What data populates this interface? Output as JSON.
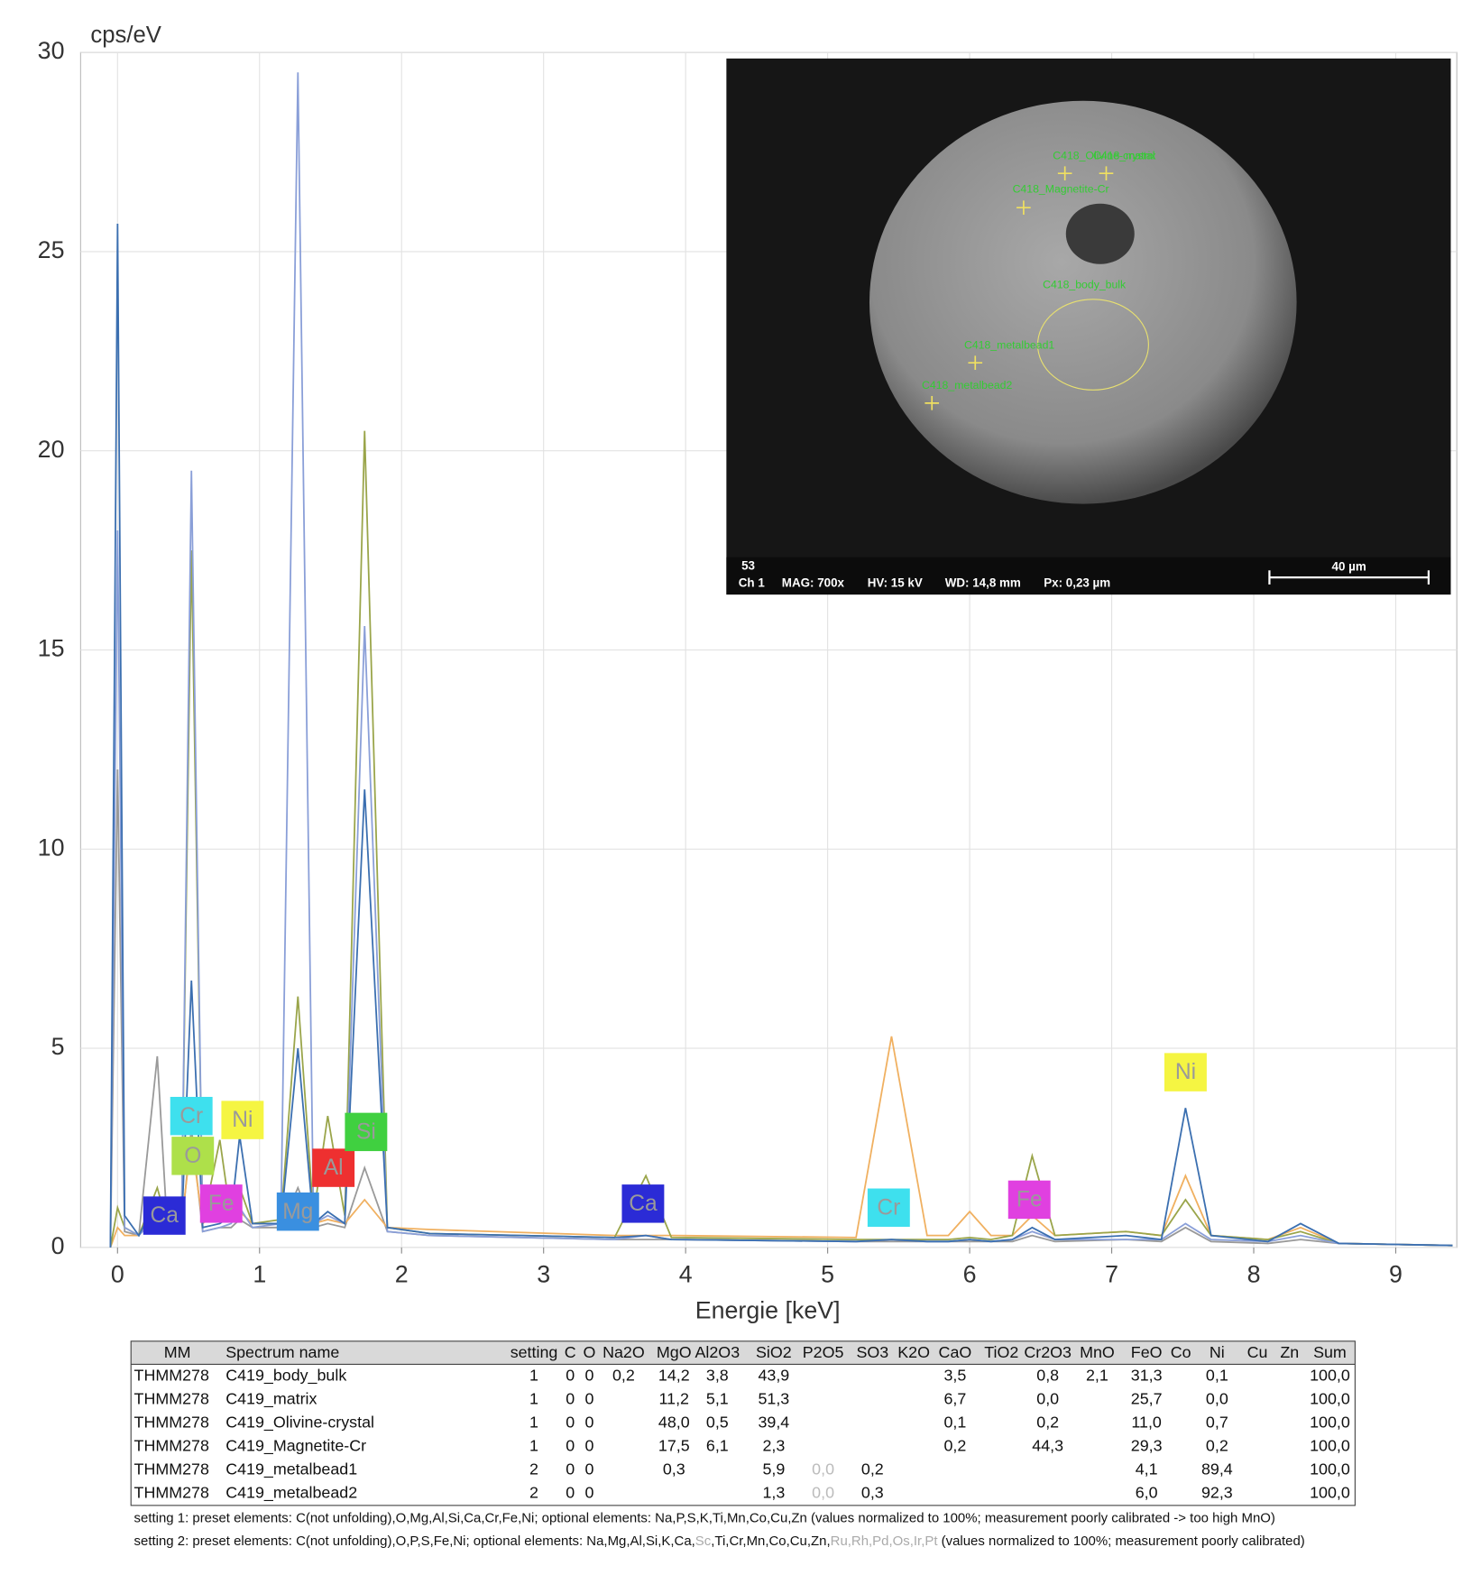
{
  "chart_data": {
    "type": "line",
    "y_label": "cps/eV",
    "x_label": "Energie [keV]",
    "xlim": [
      -0.26,
      9.43
    ],
    "xticks": [
      0,
      1,
      2,
      3,
      4,
      5,
      6,
      7,
      8,
      9
    ],
    "ylim": [
      0,
      30
    ],
    "yticks": [
      0,
      5,
      10,
      15,
      20,
      25,
      30
    ],
    "grid": true,
    "x": [
      -0.05,
      0,
      0.05,
      0.15,
      0.28,
      0.35,
      0.45,
      0.52,
      0.6,
      0.72,
      0.8,
      0.86,
      0.95,
      1.15,
      1.27,
      1.38,
      1.48,
      1.6,
      1.74,
      1.9,
      2.2,
      3.5,
      3.72,
      3.9,
      5.2,
      5.45,
      5.7,
      5.85,
      6.0,
      6.15,
      6.3,
      6.44,
      6.6,
      7.1,
      7.35,
      7.52,
      7.7,
      8.1,
      8.33,
      8.6,
      9.4
    ],
    "series": [
      {
        "color": "#999999",
        "values": [
          0,
          12,
          0.4,
          0.3,
          4.8,
          0.5,
          0.4,
          3.0,
          0.4,
          0.5,
          0.5,
          0.7,
          0.5,
          0.5,
          1.5,
          0.5,
          0.6,
          0.5,
          2.0,
          0.4,
          0.3,
          0.2,
          0.2,
          0.2,
          0.15,
          0.15,
          0.15,
          0.15,
          0.15,
          0.15,
          0.15,
          0.3,
          0.15,
          0.2,
          0.15,
          0.5,
          0.15,
          0.1,
          0.2,
          0.1,
          0.05
        ]
      },
      {
        "color": "#f0b060",
        "values": [
          0,
          0.5,
          0.3,
          0.3,
          1.0,
          0.5,
          0.6,
          2.7,
          0.6,
          1.0,
          0.7,
          0.9,
          0.6,
          0.6,
          0.9,
          0.6,
          0.7,
          0.6,
          1.2,
          0.5,
          0.45,
          0.3,
          0.3,
          0.3,
          0.25,
          5.3,
          0.3,
          0.3,
          0.9,
          0.3,
          0.3,
          0.8,
          0.3,
          0.4,
          0.3,
          1.8,
          0.3,
          0.2,
          0.5,
          0.1,
          0.05
        ]
      },
      {
        "color": "#9aa54a",
        "values": [
          0,
          1,
          0.5,
          0.3,
          1.5,
          0.6,
          0.5,
          17.5,
          0.6,
          2.7,
          0.7,
          1.5,
          0.6,
          0.7,
          6.3,
          0.8,
          3.3,
          0.8,
          20.5,
          0.5,
          0.35,
          0.25,
          1.8,
          0.25,
          0.2,
          0.2,
          0.2,
          0.2,
          0.25,
          0.2,
          0.3,
          2.3,
          0.3,
          0.4,
          0.3,
          1.2,
          0.3,
          0.2,
          0.4,
          0.1,
          0.05
        ]
      },
      {
        "color": "#8a9fd8",
        "values": [
          0,
          18,
          0.5,
          0.3,
          0.8,
          0.4,
          0.4,
          19.5,
          0.4,
          0.5,
          0.6,
          1.0,
          0.5,
          0.6,
          29.5,
          0.6,
          0.8,
          0.6,
          15.6,
          0.4,
          0.3,
          0.2,
          0.3,
          0.2,
          0.15,
          0.2,
          0.15,
          0.15,
          0.2,
          0.15,
          0.2,
          0.4,
          0.2,
          0.2,
          0.2,
          0.6,
          0.2,
          0.15,
          0.3,
          0.1,
          0.05
        ]
      },
      {
        "color": "#3b6fb0",
        "values": [
          0,
          25.7,
          0.8,
          0.3,
          1.2,
          0.5,
          0.4,
          6.7,
          0.5,
          0.6,
          0.8,
          2.8,
          0.6,
          0.6,
          5.0,
          0.6,
          0.9,
          0.6,
          11.5,
          0.5,
          0.35,
          0.25,
          0.3,
          0.2,
          0.15,
          0.2,
          0.15,
          0.15,
          0.2,
          0.15,
          0.2,
          0.5,
          0.2,
          0.3,
          0.2,
          3.5,
          0.3,
          0.15,
          0.6,
          0.1,
          0.05
        ]
      }
    ],
    "annotations": [
      {
        "text": "Ca",
        "x": 0.33,
        "y": 0.8,
        "color": "#2b2bd6"
      },
      {
        "text": "Cr",
        "x": 0.52,
        "y": 3.3,
        "color": "#3ee0ee"
      },
      {
        "text": "O",
        "x": 0.53,
        "y": 2.3,
        "color": "#aee04a"
      },
      {
        "text": "Ni",
        "x": 0.88,
        "y": 3.2,
        "color": "#f5f542"
      },
      {
        "text": "Fe",
        "x": 0.73,
        "y": 1.1,
        "color": "#e040e0"
      },
      {
        "text": "Mg",
        "x": 1.27,
        "y": 0.9,
        "color": "#3a8fe0"
      },
      {
        "text": "Al",
        "x": 1.52,
        "y": 2.0,
        "color": "#ee3030"
      },
      {
        "text": "Si",
        "x": 1.75,
        "y": 2.9,
        "color": "#40d040"
      },
      {
        "text": "Ca",
        "x": 3.7,
        "y": 1.1,
        "color": "#2b2bd6"
      },
      {
        "text": "Cr",
        "x": 5.43,
        "y": 1.0,
        "color": "#3ee0ee"
      },
      {
        "text": "Fe",
        "x": 6.42,
        "y": 1.2,
        "color": "#e040e0"
      },
      {
        "text": "Ni",
        "x": 7.52,
        "y": 4.4,
        "color": "#f5f542"
      }
    ]
  },
  "inset": {
    "labels": [
      "C418_matrix",
      "C418_Olivine-crystal",
      "C418_Magnetite-Cr",
      "C418_body_bulk",
      "C418_metalbead1",
      "C418_metalbead2"
    ],
    "footer": [
      "53",
      "Ch 1",
      "MAG: 700x",
      "HV: 15 kV",
      "WD: 14,8 mm",
      "Px: 0,23 µm"
    ],
    "scale": "40 µm"
  },
  "table": {
    "header": [
      "MM",
      "Spectrum name",
      "setting",
      "C",
      "O",
      "Na2O",
      "MgO",
      "Al2O3",
      "SiO2",
      "P2O5",
      "SO3",
      "K2O",
      "CaO",
      "TiO2",
      "Cr2O3",
      "MnO",
      "FeO",
      "Co",
      "Ni",
      "Cu",
      "Zn",
      "Sum"
    ],
    "rows": [
      [
        "THMM278",
        "C419_body_bulk",
        "1",
        "0",
        "0",
        "0,2",
        "14,2",
        "3,8",
        "43,9",
        null,
        null,
        null,
        "3,5",
        null,
        "0,8",
        "2,1",
        "31,3",
        null,
        "0,1",
        null,
        null,
        "100,0"
      ],
      [
        "THMM278",
        "C419_matrix",
        "1",
        "0",
        "0",
        null,
        "11,2",
        "5,1",
        "51,3",
        null,
        null,
        null,
        "6,7",
        null,
        "0,0",
        null,
        "25,7",
        null,
        "0,0",
        null,
        null,
        "100,0"
      ],
      [
        "THMM278",
        "C419_Olivine-crystal",
        "1",
        "0",
        "0",
        null,
        "48,0",
        "0,5",
        "39,4",
        null,
        null,
        null,
        "0,1",
        null,
        "0,2",
        null,
        "11,0",
        null,
        "0,7",
        null,
        null,
        "100,0"
      ],
      [
        "THMM278",
        "C419_Magnetite-Cr",
        "1",
        "0",
        "0",
        null,
        "17,5",
        "6,1",
        "2,3",
        null,
        null,
        null,
        "0,2",
        null,
        "44,3",
        null,
        "29,3",
        null,
        "0,2",
        null,
        null,
        "100,0"
      ],
      [
        "THMM278",
        "C419_metalbead1",
        "2",
        "0",
        "0",
        null,
        "0,3",
        null,
        "5,9",
        {
          "text": "0,0",
          "muted": true
        },
        "0,2",
        null,
        null,
        null,
        null,
        null,
        "4,1",
        null,
        "89,4",
        null,
        null,
        "100,0"
      ],
      [
        "THMM278",
        "C419_metalbead2",
        "2",
        "0",
        "0",
        null,
        null,
        null,
        "1,3",
        {
          "text": "0,0",
          "muted": true
        },
        "0,3",
        null,
        null,
        null,
        null,
        null,
        "6,0",
        null,
        "92,3",
        null,
        null,
        "100,0"
      ]
    ]
  },
  "notes": [
    [
      {
        "text": "setting 1: preset elements: C(not unfolding),O,Mg,Al,Si,Ca,Cr,Fe,Ni; optional elements: Na,P,S,K,Ti,Mn,Co,Cu,Zn (values normalized to 100%; measurement poorly calibrated -> too high MnO)",
        "muted": false
      }
    ],
    [
      {
        "text": "setting 2: preset elements: C(not unfolding),O,P,S,Fe,Ni; optional elements: Na,Mg,Al,Si,K,Ca,",
        "muted": false
      },
      {
        "text": "Sc",
        "muted": true
      },
      {
        "text": ",Ti,Cr,Mn,Co,Cu,Zn,",
        "muted": false
      },
      {
        "text": "Ru,Rh,Pd,Os,Ir,Pt",
        "muted": true
      },
      {
        "text": "  (values normalized to 100%; measurement poorly calibrated)",
        "muted": false
      }
    ]
  ]
}
